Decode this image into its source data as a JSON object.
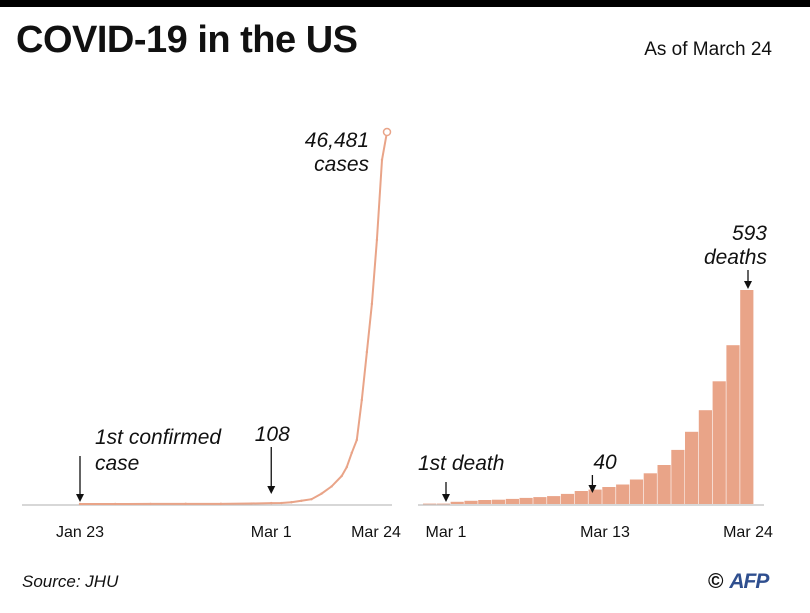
{
  "header": {
    "title": "COVID-19 in the US",
    "as_of": "As of March 24"
  },
  "footer": {
    "source": "Source: JHU",
    "copyright_symbol": "©",
    "agency": "AFP"
  },
  "colors": {
    "series": "#e9a488",
    "axis": "#bfbfbf",
    "text": "#111111",
    "brand_bar": "#000000"
  },
  "chart_data": [
    {
      "type": "line",
      "series": [
        {
          "name": "cases",
          "x": [
            "2020-01-23",
            "2020-01-30",
            "2020-02-06",
            "2020-02-13",
            "2020-02-20",
            "2020-02-26",
            "2020-03-01",
            "2020-03-03",
            "2020-03-05",
            "2020-03-07",
            "2020-03-09",
            "2020-03-11",
            "2020-03-13",
            "2020-03-15",
            "2020-03-16",
            "2020-03-17",
            "2020-03-18",
            "2020-03-19",
            "2020-03-20",
            "2020-03-21",
            "2020-03-22",
            "2020-03-23",
            "2020-03-24"
          ],
          "values": [
            1,
            6,
            12,
            15,
            15,
            60,
            108,
            120,
            220,
            400,
            600,
            1300,
            2200,
            3500,
            4600,
            6400,
            8000,
            13000,
            19000,
            25000,
            33000,
            43000,
            46481
          ]
        }
      ],
      "xticks": [
        "Jan 23",
        "Mar 1",
        "Mar 24"
      ],
      "annotations": {
        "first_case": [
          "1st confirmed",
          "case"
        ],
        "mar1_value": "108",
        "final_value": "46,481",
        "final_unit": "cases"
      }
    },
    {
      "type": "bar",
      "series": [
        {
          "name": "deaths",
          "categories": [
            "Mar 1",
            "Mar 2",
            "Mar 3",
            "Mar 4",
            "Mar 5",
            "Mar 6",
            "Mar 7",
            "Mar 8",
            "Mar 9",
            "Mar 10",
            "Mar 11",
            "Mar 12",
            "Mar 13",
            "Mar 14",
            "Mar 15",
            "Mar 16",
            "Mar 17",
            "Mar 18",
            "Mar 19",
            "Mar 20",
            "Mar 21",
            "Mar 22",
            "Mar 23",
            "Mar 24"
          ],
          "values": [
            1,
            1,
            6,
            9,
            11,
            12,
            14,
            17,
            19,
            22,
            28,
            36,
            40,
            47,
            54,
            68,
            85,
            108,
            150,
            200,
            260,
            340,
            440,
            593
          ]
        }
      ],
      "xticks": [
        "Mar 1",
        "Mar 13",
        "Mar 24"
      ],
      "annotations": {
        "first_death": "1st death",
        "mar13_value": "40",
        "final_value": "593",
        "final_unit": "deaths"
      }
    }
  ]
}
